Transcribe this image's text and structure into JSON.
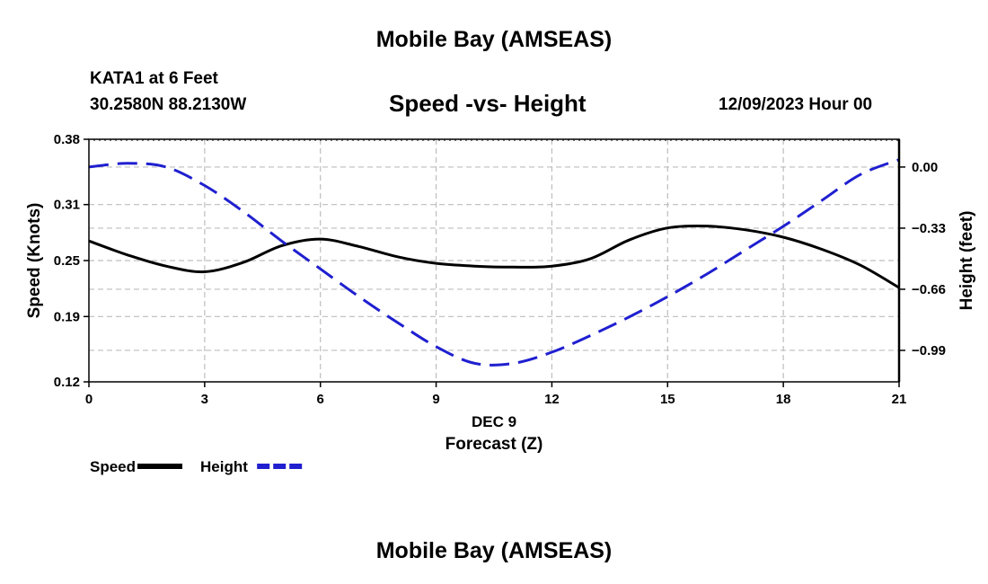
{
  "header": {
    "title": "Mobile Bay (AMSEAS)",
    "station": "KATA1 at 6 Feet",
    "coords": "30.2580N  88.2130W",
    "subtitle": "Speed -vs- Height",
    "datetime": "12/09/2023 Hour 00"
  },
  "footer": {
    "title": "Mobile Bay (AMSEAS)"
  },
  "chart_data": {
    "type": "line",
    "title": "Speed -vs- Height",
    "xlabel_top": "DEC 9",
    "xlabel": "Forecast (Z)",
    "ylabel": "Speed (Knots)",
    "y2label": "Height (feet)",
    "xlim": [
      0,
      21
    ],
    "ylim": [
      0.12,
      0.38
    ],
    "y2lim": [
      -1.16,
      0.15
    ],
    "x_ticks": [
      "0",
      "3",
      "6",
      "9",
      "12",
      "15",
      "18",
      "21"
    ],
    "y_ticks": [
      "0.12",
      "0.19",
      "0.25",
      "0.31",
      "0.38"
    ],
    "y2_ticks": [
      "0.00",
      "−0.33",
      "−0.66",
      "−0.99"
    ],
    "series": [
      {
        "name": "Speed",
        "axis": "left",
        "color": "#000000",
        "style": "solid",
        "x": [
          0,
          1,
          2,
          3,
          4,
          5,
          6,
          7,
          8,
          9,
          10,
          11,
          12,
          13,
          14,
          15,
          16,
          17,
          18,
          19,
          20,
          21
        ],
        "values": [
          0.271,
          0.256,
          0.244,
          0.238,
          0.248,
          0.266,
          0.273,
          0.265,
          0.254,
          0.247,
          0.244,
          0.243,
          0.244,
          0.252,
          0.272,
          0.285,
          0.287,
          0.283,
          0.275,
          0.262,
          0.245,
          0.221
        ]
      },
      {
        "name": "Height",
        "axis": "right",
        "color": "#1f1fd0",
        "style": "dashed",
        "x": [
          0,
          1,
          2,
          3,
          4,
          5,
          6,
          7,
          8,
          9,
          10,
          11,
          12,
          13,
          14,
          15,
          16,
          17,
          18,
          19,
          20,
          21
        ],
        "values": [
          0.0,
          0.02,
          0.0,
          -0.1,
          -0.24,
          -0.4,
          -0.55,
          -0.7,
          -0.84,
          -0.97,
          -1.06,
          -1.06,
          -1.0,
          -0.91,
          -0.81,
          -0.7,
          -0.58,
          -0.45,
          -0.32,
          -0.18,
          -0.04,
          0.04
        ]
      }
    ],
    "legend": [
      {
        "label": "Speed",
        "color": "#000000",
        "style": "solid"
      },
      {
        "label": "Height",
        "color": "#1f1fd0",
        "style": "dashed"
      }
    ],
    "grid": true,
    "legend_position": "bottom-left"
  }
}
